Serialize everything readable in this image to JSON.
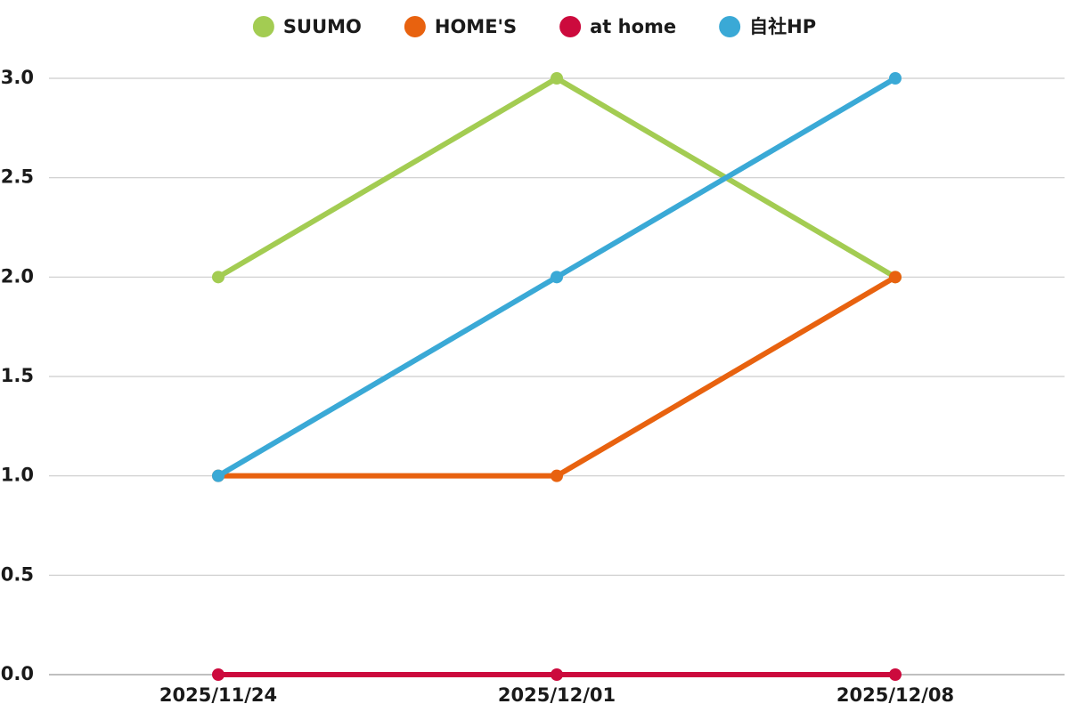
{
  "chart_data": {
    "type": "line",
    "categories": [
      "2025/11/24",
      "2025/12/01",
      "2025/12/08"
    ],
    "series": [
      {
        "name": "SUUMO",
        "color": "#a3cc52",
        "values": [
          2,
          3,
          2
        ]
      },
      {
        "name": "HOME'S",
        "color": "#e8620f",
        "values": [
          1,
          1,
          2
        ]
      },
      {
        "name": "at home",
        "color": "#cc0a3d",
        "values": [
          0,
          0,
          0
        ]
      },
      {
        "name": "自社HP",
        "color": "#3aa9d6",
        "values": [
          1,
          2,
          3
        ]
      }
    ],
    "ylim": [
      0,
      3
    ],
    "yticks": [
      {
        "value": 0,
        "label": "0.0"
      },
      {
        "value": 0.5,
        "label": "0.5"
      },
      {
        "value": 1,
        "label": "1.0"
      },
      {
        "value": 1.5,
        "label": "1.5"
      },
      {
        "value": 2,
        "label": "2.0"
      },
      {
        "value": 2.5,
        "label": "2.5"
      },
      {
        "value": 3,
        "label": "3.0"
      }
    ],
    "grid": true,
    "legend": "top"
  }
}
